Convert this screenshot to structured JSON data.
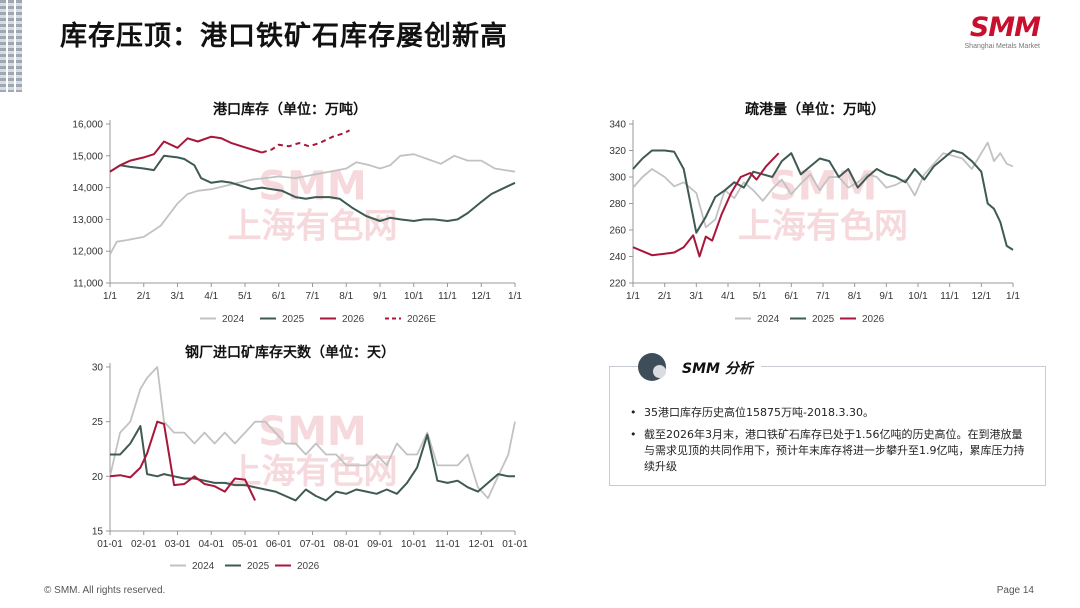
{
  "page": {
    "title": "库存压顶：港口铁矿石库存屡创新高",
    "logo_text": "SMM",
    "logo_sub": "Shanghai Metals Market",
    "watermark_line1": "SMM",
    "watermark_line2": "上海有色网",
    "footer_copyright": "© SMM. All rights reserved.",
    "footer_page": "Page 14"
  },
  "colors": {
    "s2024": "#c2c2c2",
    "s2025": "#3f5a52",
    "s2026": "#a8163a",
    "s2026e": "#a8163a",
    "accent": "#c8102e"
  },
  "analysis": {
    "title": "SMM 分析",
    "bullets": [
      "35港口库存历史高位15875万吨-2018.3.30。",
      "截至2026年3月末，港口铁矿石库存已处于1.56亿吨的历史高位。在到港放量与需求见顶的共同作用下，预计年末库存将进一步攀升至1.9亿吨，累库压力持续升级"
    ]
  },
  "chart_data": [
    {
      "type": "line",
      "title": "港口库存（单位：万吨）",
      "x_ticks": [
        "1/1",
        "2/1",
        "3/1",
        "4/1",
        "5/1",
        "6/1",
        "7/1",
        "8/1",
        "9/1",
        "10/1",
        "11/1",
        "12/1",
        "1/1"
      ],
      "y_ticks": [
        "11,000",
        "12,000",
        "13,000",
        "14,000",
        "15,000",
        "16,000"
      ],
      "xlim": [
        0,
        12
      ],
      "ylim": [
        11000,
        16000
      ],
      "legend": [
        "2024",
        "2025",
        "2026",
        "2026E"
      ],
      "series": [
        {
          "name": "2024",
          "color": "#c2c2c2",
          "x": [
            0,
            0.2,
            0.5,
            1.0,
            1.5,
            2.0,
            2.3,
            2.6,
            3.0,
            3.4,
            3.8,
            4.2,
            4.6,
            5.0,
            5.5,
            6.0,
            6.5,
            7.0,
            7.3,
            7.7,
            8.0,
            8.3,
            8.6,
            9.0,
            9.4,
            9.8,
            10.2,
            10.6,
            11.0,
            11.4,
            11.7,
            12.0
          ],
          "y": [
            11900,
            12300,
            12350,
            12450,
            12800,
            13500,
            13800,
            13900,
            13950,
            14050,
            14150,
            14250,
            14300,
            14350,
            14300,
            14400,
            14500,
            14600,
            14800,
            14700,
            14600,
            14700,
            15000,
            15050,
            14900,
            14750,
            15000,
            14850,
            14850,
            14600,
            14550,
            14500
          ]
        },
        {
          "name": "2025",
          "color": "#3f5a52",
          "x": [
            0,
            0.3,
            0.6,
            1.0,
            1.3,
            1.6,
            2.0,
            2.2,
            2.5,
            2.7,
            3.0,
            3.3,
            3.6,
            3.9,
            4.2,
            4.5,
            4.8,
            5.1,
            5.5,
            5.8,
            6.1,
            6.5,
            6.8,
            7.2,
            7.6,
            8.0,
            8.3,
            8.6,
            9.0,
            9.3,
            9.6,
            10.0,
            10.3,
            10.6,
            11.0,
            11.3,
            11.6,
            12.0
          ],
          "y": [
            14500,
            14700,
            14650,
            14600,
            14550,
            15000,
            14950,
            14900,
            14700,
            14300,
            14150,
            14200,
            14150,
            14050,
            13950,
            14000,
            13950,
            13900,
            13700,
            13650,
            13700,
            13700,
            13650,
            13350,
            13100,
            12950,
            13050,
            13000,
            12950,
            13000,
            13000,
            12950,
            13000,
            13200,
            13550,
            13800,
            13950,
            14150
          ]
        },
        {
          "name": "2026",
          "color": "#a8163a",
          "x": [
            0,
            0.3,
            0.6,
            1.0,
            1.3,
            1.6,
            2.0,
            2.3,
            2.6,
            3.0,
            3.3,
            3.6,
            3.9,
            4.2,
            4.5
          ],
          "y": [
            14500,
            14700,
            14850,
            14950,
            15050,
            15450,
            15250,
            15550,
            15450,
            15600,
            15550,
            15400,
            15300,
            15200,
            15100
          ]
        },
        {
          "name": "2026E",
          "color": "#a8163a",
          "dash": true,
          "x": [
            4.5,
            4.8,
            5.0,
            5.3,
            5.6,
            5.9,
            6.2,
            6.6,
            6.9,
            7.1
          ],
          "y": [
            15100,
            15200,
            15350,
            15300,
            15400,
            15300,
            15400,
            15600,
            15700,
            15800
          ]
        }
      ]
    },
    {
      "type": "line",
      "title": "疏港量（单位：万吨）",
      "x_ticks": [
        "1/1",
        "2/1",
        "3/1",
        "4/1",
        "5/1",
        "6/1",
        "7/1",
        "8/1",
        "9/1",
        "10/1",
        "11/1",
        "12/1",
        "1/1"
      ],
      "y_ticks": [
        "220",
        "240",
        "260",
        "280",
        "300",
        "320",
        "340"
      ],
      "xlim": [
        0,
        12
      ],
      "ylim": [
        220,
        340
      ],
      "legend": [
        "2024",
        "2025",
        "2026"
      ],
      "series": [
        {
          "name": "2024",
          "color": "#c2c2c2",
          "x": [
            0,
            0.3,
            0.6,
            1.0,
            1.3,
            1.6,
            2.0,
            2.3,
            2.6,
            2.9,
            3.2,
            3.5,
            3.8,
            4.1,
            4.4,
            4.7,
            5.0,
            5.3,
            5.6,
            5.9,
            6.2,
            6.5,
            6.8,
            7.1,
            7.4,
            7.7,
            8.0,
            8.3,
            8.6,
            8.9,
            9.2,
            9.5,
            9.8,
            10.1,
            10.4,
            10.7,
            11.0,
            11.2,
            11.4,
            11.6,
            11.8,
            12.0
          ],
          "y": [
            292,
            300,
            306,
            300,
            293,
            296,
            288,
            262,
            268,
            290,
            284,
            296,
            290,
            282,
            291,
            298,
            287,
            295,
            302,
            290,
            300,
            300,
            292,
            296,
            302,
            300,
            292,
            294,
            298,
            286,
            302,
            310,
            318,
            316,
            314,
            306,
            318,
            326,
            312,
            318,
            310,
            308
          ]
        },
        {
          "name": "2025",
          "color": "#3f5a52",
          "x": [
            0,
            0.3,
            0.6,
            1.0,
            1.3,
            1.6,
            2.0,
            2.3,
            2.6,
            2.9,
            3.2,
            3.5,
            3.8,
            4.1,
            4.4,
            4.7,
            5.0,
            5.3,
            5.6,
            5.9,
            6.2,
            6.5,
            6.8,
            7.1,
            7.4,
            7.7,
            8.0,
            8.3,
            8.6,
            8.9,
            9.2,
            9.5,
            9.8,
            10.1,
            10.4,
            10.7,
            11.0,
            11.2,
            11.4,
            11.6,
            11.8,
            12.0
          ],
          "y": [
            306,
            314,
            320,
            320,
            319,
            306,
            258,
            270,
            285,
            290,
            296,
            292,
            304,
            302,
            300,
            312,
            318,
            302,
            308,
            314,
            312,
            300,
            306,
            292,
            300,
            306,
            302,
            300,
            296,
            306,
            298,
            308,
            314,
            320,
            318,
            312,
            304,
            280,
            276,
            266,
            248,
            245
          ]
        },
        {
          "name": "2026",
          "color": "#a8163a",
          "x": [
            0,
            0.3,
            0.6,
            1.0,
            1.3,
            1.6,
            1.9,
            2.1,
            2.3,
            2.5,
            2.8,
            3.1,
            3.4,
            3.7,
            3.9,
            4.2,
            4.4,
            4.6
          ],
          "y": [
            247,
            244,
            241,
            242,
            243,
            247,
            256,
            240,
            255,
            252,
            272,
            288,
            300,
            303,
            298,
            308,
            313,
            318
          ]
        }
      ]
    },
    {
      "type": "line",
      "title": "钢厂进口矿库存天数（单位：天）",
      "x_ticks": [
        "01-01",
        "02-01",
        "03-01",
        "04-01",
        "05-01",
        "06-01",
        "07-01",
        "08-01",
        "09-01",
        "10-01",
        "11-01",
        "12-01",
        "01-01"
      ],
      "y_ticks": [
        "15",
        "20",
        "25",
        "30"
      ],
      "xlim": [
        0,
        12
      ],
      "ylim": [
        15,
        30
      ],
      "legend": [
        "2024",
        "2025",
        "2026"
      ],
      "series": [
        {
          "name": "2024",
          "color": "#c2c2c2",
          "x": [
            0,
            0.3,
            0.6,
            0.9,
            1.1,
            1.4,
            1.6,
            1.9,
            2.2,
            2.5,
            2.8,
            3.1,
            3.4,
            3.7,
            4.0,
            4.3,
            4.6,
            4.9,
            5.2,
            5.5,
            5.8,
            6.1,
            6.4,
            6.7,
            7.0,
            7.3,
            7.6,
            7.9,
            8.2,
            8.5,
            8.8,
            9.1,
            9.4,
            9.7,
            10.0,
            10.3,
            10.6,
            10.9,
            11.2,
            11.5,
            11.8,
            12.0
          ],
          "y": [
            20,
            24,
            25,
            28,
            29,
            30,
            25,
            24,
            24,
            23,
            24,
            23,
            24,
            23,
            24,
            25,
            25,
            24,
            23,
            23,
            22,
            23,
            22,
            22,
            21,
            21,
            21,
            22,
            21,
            23,
            22,
            22,
            24,
            21,
            21,
            21,
            22,
            19,
            18,
            20,
            22,
            25
          ]
        },
        {
          "name": "2025",
          "color": "#3f5a52",
          "x": [
            0,
            0.3,
            0.6,
            0.9,
            1.1,
            1.4,
            1.6,
            1.9,
            2.2,
            2.5,
            2.8,
            3.1,
            3.4,
            3.7,
            4.0,
            4.3,
            4.6,
            4.9,
            5.2,
            5.5,
            5.8,
            6.1,
            6.4,
            6.7,
            7.0,
            7.3,
            7.6,
            7.9,
            8.2,
            8.5,
            8.8,
            9.1,
            9.4,
            9.7,
            10.0,
            10.3,
            10.6,
            10.9,
            11.2,
            11.5,
            11.8,
            12.0
          ],
          "y": [
            22,
            22,
            23,
            24.6,
            20.2,
            20,
            20.2,
            20,
            19.8,
            19.8,
            19.6,
            19.4,
            19.4,
            19.2,
            19.2,
            19,
            18.8,
            18.6,
            18.2,
            17.8,
            18.8,
            18.2,
            17.8,
            18.6,
            18.4,
            18.8,
            18.6,
            18.4,
            18.8,
            18.4,
            19.4,
            20.8,
            23.8,
            19.6,
            19.4,
            19.6,
            19.0,
            18.6,
            19.4,
            20.2,
            20.0,
            20.0
          ]
        },
        {
          "name": "2026",
          "color": "#a8163a",
          "x": [
            0,
            0.3,
            0.6,
            0.9,
            1.1,
            1.4,
            1.6,
            1.9,
            2.2,
            2.5,
            2.8,
            3.1,
            3.4,
            3.7,
            4.0,
            4.3
          ],
          "y": [
            20,
            20.1,
            19.9,
            20.8,
            22.1,
            25,
            24.8,
            19.2,
            19.3,
            20,
            19.3,
            19.1,
            18.6,
            19.8,
            19.7,
            17.8
          ]
        }
      ]
    }
  ]
}
